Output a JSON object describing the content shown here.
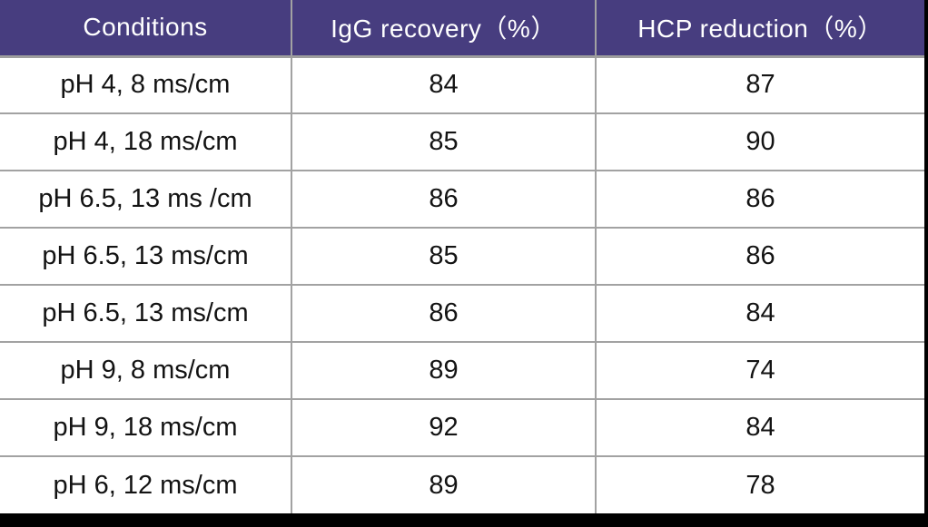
{
  "table": {
    "columns": [
      {
        "label": "Conditions"
      },
      {
        "label": "IgG recovery（%）"
      },
      {
        "label": "HCP reduction（%）"
      }
    ],
    "rows": [
      {
        "condition": "pH 4, 8 ms/cm",
        "igg_recovery": "84",
        "hcp_reduction": "87"
      },
      {
        "condition": "pH 4, 18 ms/cm",
        "igg_recovery": "85",
        "hcp_reduction": "90"
      },
      {
        "condition": "pH 6.5, 13 ms /cm",
        "igg_recovery": "86",
        "hcp_reduction": "86"
      },
      {
        "condition": "pH 6.5, 13 ms/cm",
        "igg_recovery": "85",
        "hcp_reduction": "86"
      },
      {
        "condition": "pH 6.5, 13 ms/cm",
        "igg_recovery": "86",
        "hcp_reduction": "84"
      },
      {
        "condition": "pH 9, 8 ms/cm",
        "igg_recovery": "89",
        "hcp_reduction": "74"
      },
      {
        "condition": "pH 9, 18 ms/cm",
        "igg_recovery": "92",
        "hcp_reduction": "84"
      },
      {
        "condition": "pH 6, 12 ms/cm",
        "igg_recovery": "89",
        "hcp_reduction": "78"
      }
    ]
  },
  "colors": {
    "header_background": "#473D7F",
    "header_text": "#FFFFFF",
    "grid_line": "#A2A2A2",
    "body_text": "#131313",
    "frame_bar": "#000000"
  }
}
